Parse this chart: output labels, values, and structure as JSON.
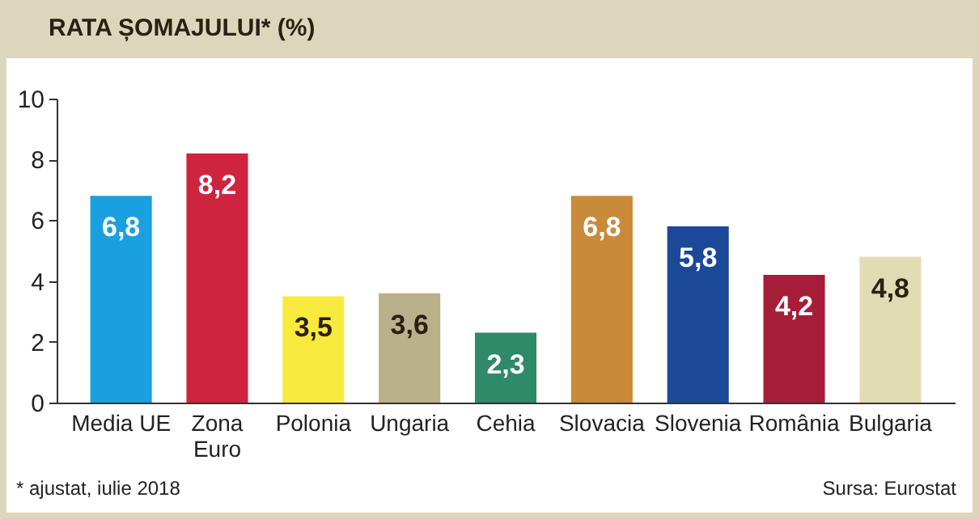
{
  "chart_data": {
    "type": "bar",
    "title": "RATA ȘOMAJULUI* (%)",
    "categories": [
      "Media UE",
      "Zona\nEuro",
      "Polonia",
      "Ungaria",
      "Cehia",
      "Slovacia",
      "Slovenia",
      "România",
      "Bulgaria"
    ],
    "values": [
      6.8,
      8.2,
      3.5,
      3.6,
      2.3,
      6.8,
      5.8,
      4.2,
      4.8
    ],
    "value_labels": [
      "6,8",
      "8,2",
      "3,5",
      "3,6",
      "2,3",
      "6,8",
      "5,8",
      "4,2",
      "4,8"
    ],
    "colors": [
      "#1aa0e0",
      "#cf2440",
      "#f8ea3c",
      "#b9b08c",
      "#2e8a68",
      "#c98a3a",
      "#1c4898",
      "#a51d38",
      "#e2dcb4"
    ],
    "ylim": [
      0,
      10
    ],
    "yticks": [
      0,
      2,
      4,
      6,
      8,
      10
    ],
    "grid": false,
    "annotations": [
      "* ajustat, iulie 2018",
      "Sursa: Eurostat"
    ]
  }
}
